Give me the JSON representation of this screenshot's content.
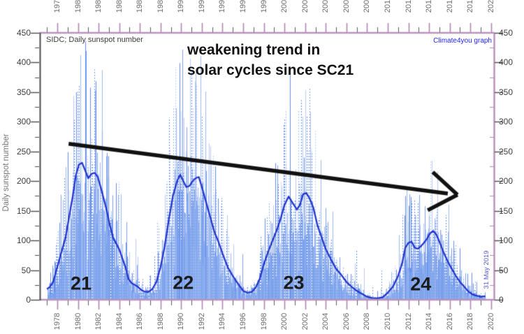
{
  "header": {
    "source_label": "SIDC; Daily sunspot number",
    "credit": "Climate4you graph"
  },
  "annotation": {
    "line1": "weakening trend in",
    "line2": "solar cycles since SC21"
  },
  "side_note": "31 May 2019",
  "ylabel": "Daily sunspot number",
  "colors": {
    "frame_plum": "#bb93bd",
    "left_axis": "#4b4b4b",
    "tick_major_plum": "#ae86b0",
    "tick_minor_dark": "#5a5a5a",
    "tick_dark": "#4b4b4b",
    "year_label": "#6e6e6e",
    "value_label": "#3f3f3f",
    "smoothed_line": "#2135cc",
    "daily_base": "#7ba2ec",
    "daily_palette": [
      "#ccd8f8",
      "#b0c4f5",
      "#8fb0f0",
      "#6a93ea",
      "#5380e8"
    ],
    "arrow": "#111111",
    "credit_blue": "#2222ff",
    "date_blue": "#5a5ad6",
    "cycle_label": "#1b1b1b"
  },
  "chart_data": {
    "type": "line",
    "title": "weakening trend in solar cycles since SC21",
    "xlabel": "",
    "ylabel": "Daily sunspot number",
    "x_range": [
      1976.31,
      2020.35
    ],
    "y_range": [
      0,
      450
    ],
    "x_ticks": [
      1978,
      1980,
      1982,
      1984,
      1986,
      1988,
      1990,
      1992,
      1994,
      1996,
      1998,
      2000,
      2002,
      2004,
      2006,
      2008,
      2010,
      2012,
      2014,
      2016,
      2018,
      2020
    ],
    "y_ticks": [
      450,
      400,
      350,
      300,
      250,
      200,
      150,
      100,
      50,
      0
    ],
    "grid": false,
    "legend": false,
    "series": [
      {
        "name": "daily sunspot number",
        "style": "noisy vertical spikes",
        "range_note": "daily values scatter from ~0 up to ~2x the smoothed value; extreme spikes ~430 in SC21, ~390 SC22, ~360 SC23, ~280 SC24",
        "spread_factor_max": 2.1,
        "extra_spike_max": 70
      },
      {
        "name": "smoothed sunspot number",
        "style": "solid line",
        "points": [
          [
            1977.0,
            18
          ],
          [
            1977.3,
            22
          ],
          [
            1977.6,
            30
          ],
          [
            1978.0,
            55
          ],
          [
            1978.4,
            80
          ],
          [
            1978.8,
            105
          ],
          [
            1979.2,
            145
          ],
          [
            1979.5,
            175
          ],
          [
            1979.8,
            210
          ],
          [
            1980.1,
            228
          ],
          [
            1980.4,
            231
          ],
          [
            1980.7,
            218
          ],
          [
            1981.0,
            205
          ],
          [
            1981.3,
            212
          ],
          [
            1981.6,
            214
          ],
          [
            1981.9,
            208
          ],
          [
            1982.2,
            190
          ],
          [
            1982.5,
            170
          ],
          [
            1982.8,
            150
          ],
          [
            1983.1,
            125
          ],
          [
            1983.4,
            105
          ],
          [
            1983.7,
            95
          ],
          [
            1984.0,
            85
          ],
          [
            1984.3,
            70
          ],
          [
            1984.6,
            55
          ],
          [
            1984.9,
            35
          ],
          [
            1985.2,
            28
          ],
          [
            1985.5,
            25
          ],
          [
            1985.8,
            22
          ],
          [
            1986.1,
            17
          ],
          [
            1986.4,
            14
          ],
          [
            1986.8,
            13
          ],
          [
            1987.2,
            18
          ],
          [
            1987.6,
            30
          ],
          [
            1988.0,
            55
          ],
          [
            1988.4,
            90
          ],
          [
            1988.8,
            135
          ],
          [
            1989.2,
            175
          ],
          [
            1989.6,
            200
          ],
          [
            1989.9,
            211
          ],
          [
            1990.2,
            200
          ],
          [
            1990.5,
            190
          ],
          [
            1990.8,
            192
          ],
          [
            1991.1,
            200
          ],
          [
            1991.4,
            205
          ],
          [
            1991.7,
            207
          ],
          [
            1992.0,
            190
          ],
          [
            1992.4,
            165
          ],
          [
            1992.8,
            140
          ],
          [
            1993.2,
            115
          ],
          [
            1993.6,
            98
          ],
          [
            1994.0,
            78
          ],
          [
            1994.5,
            55
          ],
          [
            1995.0,
            40
          ],
          [
            1995.5,
            27
          ],
          [
            1996.0,
            15
          ],
          [
            1996.4,
            12
          ],
          [
            1996.8,
            13
          ],
          [
            1997.2,
            20
          ],
          [
            1997.6,
            35
          ],
          [
            1998.0,
            60
          ],
          [
            1998.4,
            80
          ],
          [
            1998.8,
            98
          ],
          [
            1999.2,
            115
          ],
          [
            1999.6,
            135
          ],
          [
            2000.0,
            160
          ],
          [
            2000.4,
            174
          ],
          [
            2000.8,
            163
          ],
          [
            2001.2,
            152
          ],
          [
            2001.5,
            160
          ],
          [
            2001.8,
            178
          ],
          [
            2002.1,
            180
          ],
          [
            2002.4,
            172
          ],
          [
            2002.8,
            155
          ],
          [
            2003.2,
            125
          ],
          [
            2003.6,
            105
          ],
          [
            2004.0,
            85
          ],
          [
            2004.5,
            68
          ],
          [
            2005.0,
            52
          ],
          [
            2005.5,
            42
          ],
          [
            2006.0,
            30
          ],
          [
            2006.5,
            22
          ],
          [
            2007.0,
            15
          ],
          [
            2007.5,
            10
          ],
          [
            2008.0,
            5
          ],
          [
            2008.5,
            3
          ],
          [
            2009.0,
            2.5
          ],
          [
            2009.5,
            4
          ],
          [
            2010.0,
            12
          ],
          [
            2010.5,
            22
          ],
          [
            2011.0,
            40
          ],
          [
            2011.4,
            62
          ],
          [
            2011.7,
            88
          ],
          [
            2012.0,
            96
          ],
          [
            2012.3,
            98
          ],
          [
            2012.6,
            88
          ],
          [
            2012.9,
            86
          ],
          [
            2013.2,
            90
          ],
          [
            2013.5,
            96
          ],
          [
            2013.8,
            103
          ],
          [
            2014.1,
            112
          ],
          [
            2014.4,
            116
          ],
          [
            2014.7,
            110
          ],
          [
            2015.0,
            98
          ],
          [
            2015.4,
            80
          ],
          [
            2015.8,
            65
          ],
          [
            2016.2,
            52
          ],
          [
            2016.6,
            40
          ],
          [
            2017.0,
            30
          ],
          [
            2017.4,
            22
          ],
          [
            2017.8,
            14
          ],
          [
            2018.2,
            9
          ],
          [
            2018.6,
            7
          ],
          [
            2019.0,
            5
          ],
          [
            2019.45,
            6
          ]
        ]
      }
    ],
    "cycle_labels": [
      {
        "label": "21",
        "year": 1980.3,
        "value": 27
      },
      {
        "label": "22",
        "year": 1990.2,
        "value": 28
      },
      {
        "label": "23",
        "year": 2000.9,
        "value": 28
      },
      {
        "label": "24",
        "year": 2013.2,
        "value": 26
      }
    ],
    "trend_arrow": {
      "from": {
        "year": 1979.1,
        "value": 263
      },
      "to": {
        "year": 2016.75,
        "value": 177
      }
    }
  }
}
